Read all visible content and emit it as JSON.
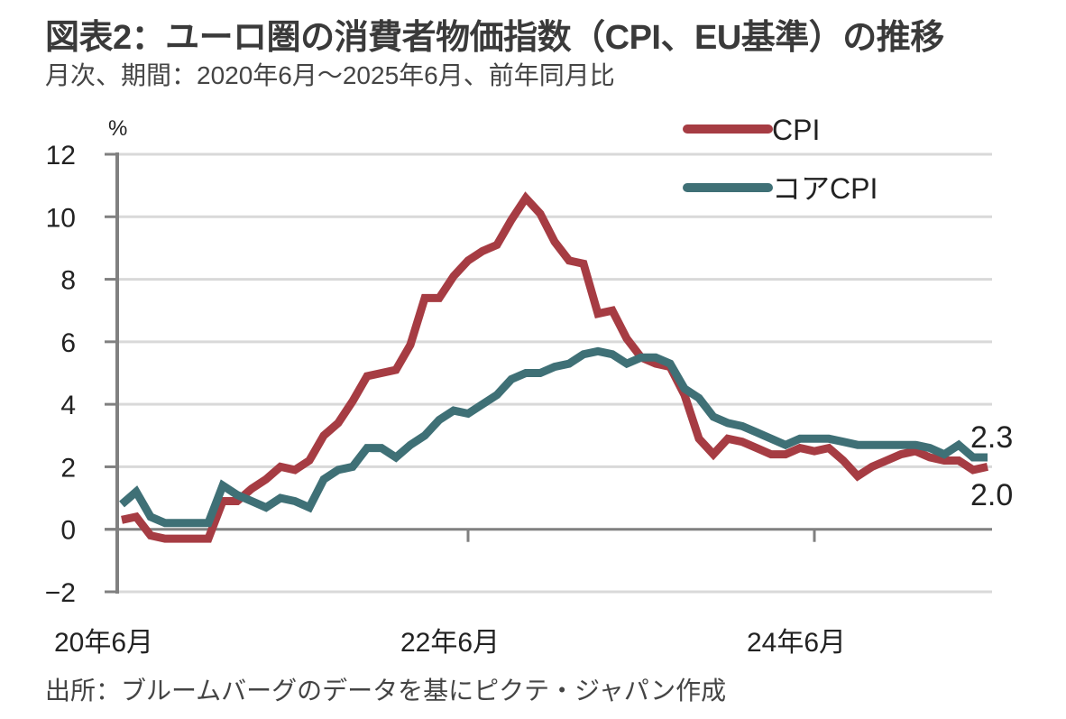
{
  "header": {
    "title": "図表2：ユーロ圏の消費者物価指数（CPI、EU基準）の推移",
    "subtitle": "月次、期間：2020年6月～2025年6月、前年同月比"
  },
  "footer": {
    "source": "出所：ブルームバーグのデータを基にピクテ・ジャパン作成"
  },
  "chart_data": {
    "type": "line",
    "title": "図表2：ユーロ圏の消費者物価指数（CPI、EU基準）の推移",
    "subtitle": "月次、期間：2020年6月～2025年6月、前年同月比",
    "xlabel": "",
    "ylabel": "%",
    "ylim": [
      -2,
      12
    ],
    "yticks": [
      12,
      10,
      8,
      6,
      4,
      2,
      0,
      -2
    ],
    "ytick_labels": [
      "12",
      "10",
      "8",
      "6",
      "4",
      "2",
      "0",
      "−2"
    ],
    "xtick_labels": [
      {
        "label": "20年6月",
        "index": 0
      },
      {
        "label": "22年6月",
        "index": 24
      },
      {
        "label": "24年6月",
        "index": 48
      }
    ],
    "grid": true,
    "legend_position": "top-right",
    "x": [
      "2020-06",
      "2020-07",
      "2020-08",
      "2020-09",
      "2020-10",
      "2020-11",
      "2020-12",
      "2021-01",
      "2021-02",
      "2021-03",
      "2021-04",
      "2021-05",
      "2021-06",
      "2021-07",
      "2021-08",
      "2021-09",
      "2021-10",
      "2021-11",
      "2021-12",
      "2022-01",
      "2022-02",
      "2022-03",
      "2022-04",
      "2022-05",
      "2022-06",
      "2022-07",
      "2022-08",
      "2022-09",
      "2022-10",
      "2022-11",
      "2022-12",
      "2023-01",
      "2023-02",
      "2023-03",
      "2023-04",
      "2023-05",
      "2023-06",
      "2023-07",
      "2023-08",
      "2023-09",
      "2023-10",
      "2023-11",
      "2023-12",
      "2024-01",
      "2024-02",
      "2024-03",
      "2024-04",
      "2024-05",
      "2024-06",
      "2024-07",
      "2024-08",
      "2024-09",
      "2024-10",
      "2024-11",
      "2024-12",
      "2025-01",
      "2025-02",
      "2025-03",
      "2025-04",
      "2025-05",
      "2025-06"
    ],
    "series": [
      {
        "name": "CPI",
        "color": "#a63c43",
        "values": [
          0.3,
          0.4,
          -0.2,
          -0.3,
          -0.3,
          -0.3,
          -0.3,
          0.9,
          0.9,
          1.3,
          1.6,
          2.0,
          1.9,
          2.2,
          3.0,
          3.4,
          4.1,
          4.9,
          5.0,
          5.1,
          5.9,
          7.4,
          7.4,
          8.1,
          8.6,
          8.9,
          9.1,
          9.9,
          10.6,
          10.1,
          9.2,
          8.6,
          8.5,
          6.9,
          7.0,
          6.1,
          5.5,
          5.3,
          5.2,
          4.3,
          2.9,
          2.4,
          2.9,
          2.8,
          2.6,
          2.4,
          2.4,
          2.6,
          2.5,
          2.6,
          2.2,
          1.7,
          2.0,
          2.2,
          2.4,
          2.5,
          2.3,
          2.2,
          2.2,
          1.9,
          2.0
        ]
      },
      {
        "name": "コアCPI",
        "color": "#3f7076",
        "values": [
          0.8,
          1.2,
          0.4,
          0.2,
          0.2,
          0.2,
          0.2,
          1.4,
          1.1,
          0.9,
          0.7,
          1.0,
          0.9,
          0.7,
          1.6,
          1.9,
          2.0,
          2.6,
          2.6,
          2.3,
          2.7,
          3.0,
          3.5,
          3.8,
          3.7,
          4.0,
          4.3,
          4.8,
          5.0,
          5.0,
          5.2,
          5.3,
          5.6,
          5.7,
          5.6,
          5.3,
          5.5,
          5.5,
          5.3,
          4.5,
          4.2,
          3.6,
          3.4,
          3.3,
          3.1,
          2.9,
          2.7,
          2.9,
          2.9,
          2.9,
          2.8,
          2.7,
          2.7,
          2.7,
          2.7,
          2.7,
          2.6,
          2.4,
          2.7,
          2.3,
          2.3
        ]
      }
    ],
    "annotations": [
      {
        "series": "コアCPI",
        "text": "2.3",
        "position": "end-above"
      },
      {
        "series": "CPI",
        "text": "2.0",
        "position": "end-below"
      }
    ]
  }
}
